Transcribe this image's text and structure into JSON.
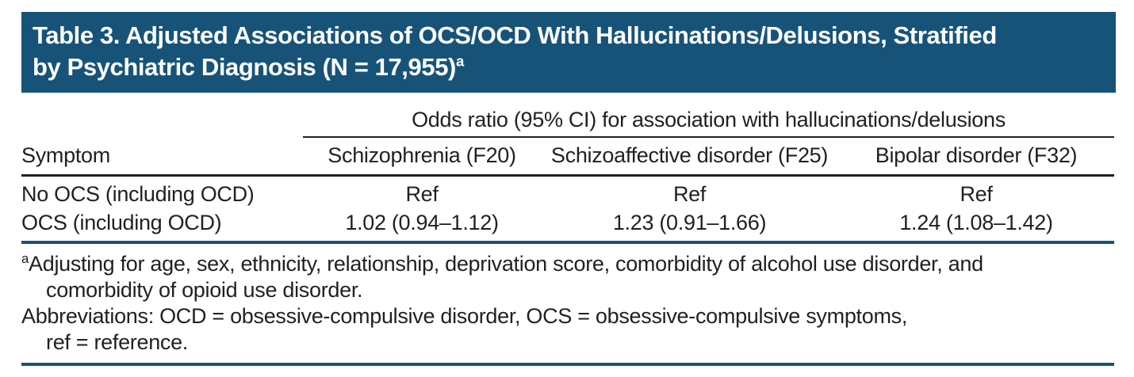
{
  "colors": {
    "page-bg": "#ffffff",
    "header-bg": "#175379",
    "header-text": "#ffffff",
    "rule-blue": "#175379",
    "rule-black": "#231f20",
    "text": "#231f20"
  },
  "header": {
    "title_line1": "Table 3. Adjusted Associations of OCS/OCD With Hallucinations/Delusions, Stratified",
    "title_line2": "by Psychiatric Diagnosis (N = 17,955)",
    "title_footnote_marker": "a"
  },
  "table": {
    "span_header": "Odds ratio (95% CI) for association with hallucinations/delusions",
    "row_header": "Symptom",
    "columns": [
      "Schizophrenia (F20)",
      "Schizoaffective disorder (F25)",
      "Bipolar disorder (F32)"
    ],
    "rows": [
      {
        "symptom": "No OCS (including OCD)",
        "values": [
          "Ref",
          "Ref",
          "Ref"
        ]
      },
      {
        "symptom": "OCS (including OCD)",
        "values": [
          "1.02 (0.94–1.12)",
          "1.23 (0.91–1.66)",
          "1.24 (1.08–1.42)"
        ]
      }
    ]
  },
  "footnotes": {
    "a": {
      "marker": "a",
      "line1": "Adjusting for age, sex, ethnicity, relationship, deprivation score, comorbidity of alcohol use disorder, and",
      "line2": "comorbidity of opioid use disorder."
    },
    "abbreviations": {
      "line1": "Abbreviations: OCD = obsessive-compulsive disorder, OCS = obsessive-compulsive symptoms,",
      "line2": "ref = reference."
    }
  }
}
